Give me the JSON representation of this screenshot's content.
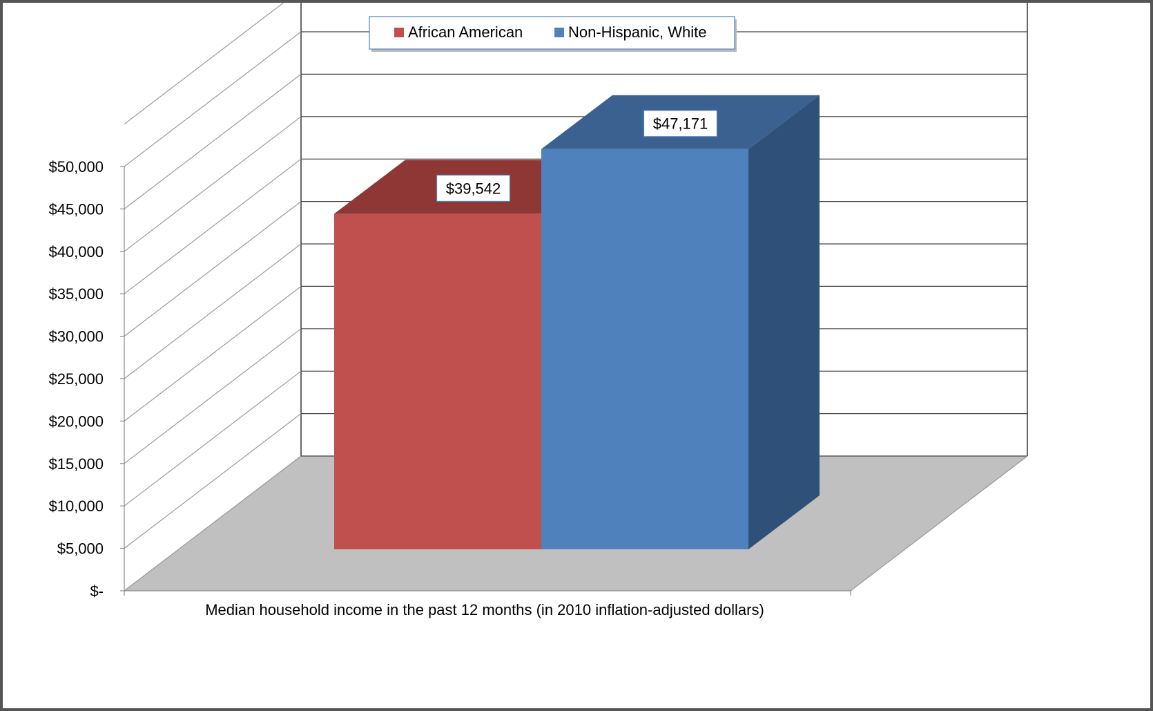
{
  "chart_data": {
    "type": "bar",
    "title": "",
    "xlabel": "Median household income in the past 12 months (in 2010 inflation-adjusted dollars)",
    "ylabel": "",
    "ylim": [
      0,
      50000
    ],
    "ytick_step": 5000,
    "ytick_labels": [
      "$-",
      "$5,000",
      "$10,000",
      "$15,000",
      "$20,000",
      "$25,000",
      "$30,000",
      "$35,000",
      "$40,000",
      "$45,000",
      "$50,000"
    ],
    "grid": true,
    "three_d": true,
    "legend_position": "top",
    "series": [
      {
        "name": "African American",
        "value": 39542,
        "label": "$39,542",
        "color": "#c0504d",
        "top_color": "#8e3735"
      },
      {
        "name": "Non-Hispanic, White",
        "value": 47171,
        "label": "$47,171",
        "color": "#4f81bd",
        "top_color": "#3b6190",
        "side_color": "#2f5078"
      }
    ],
    "floor_color": "#c0c0c0"
  }
}
